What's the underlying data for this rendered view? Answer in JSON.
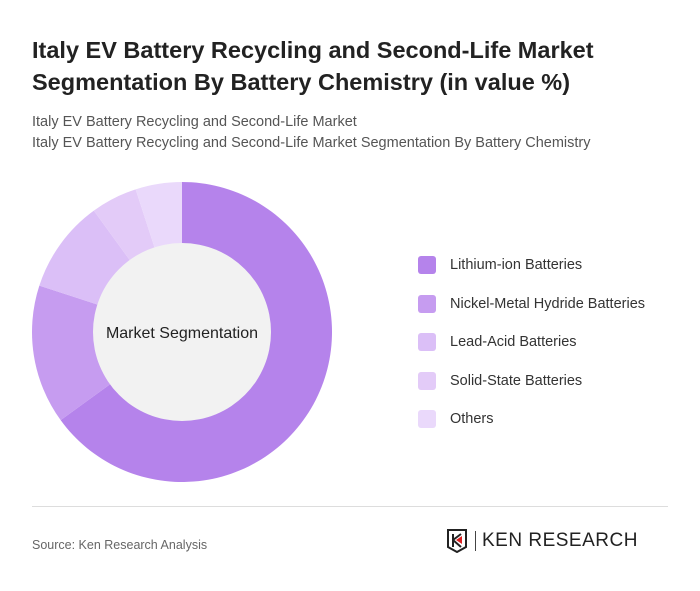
{
  "header": {
    "title": "Italy EV Battery Recycling and Second-Life Market Segmentation By Battery Chemistry (in value %)",
    "subtitle1": "Italy EV Battery Recycling and Second-Life Market",
    "subtitle2": "Italy EV Battery Recycling and Second-Life Market Segmentation By Battery Chemistry"
  },
  "chart_data": {
    "type": "pie",
    "donut": true,
    "center_label": "Market Segmentation",
    "categories": [
      "Lithium-ion Batteries",
      "Nickel-Metal Hydride Batteries",
      "Lead-Acid Batteries",
      "Solid-State Batteries",
      "Others"
    ],
    "values": [
      65,
      15,
      10,
      5,
      5
    ],
    "colors": [
      "#b583eb",
      "#c69cf0",
      "#dbbff7",
      "#e3cbf8",
      "#ead9fb"
    ],
    "legend": "right"
  },
  "footer": {
    "source": "Source: Ken Research Analysis",
    "logo_text": "KEN RESEARCH"
  }
}
